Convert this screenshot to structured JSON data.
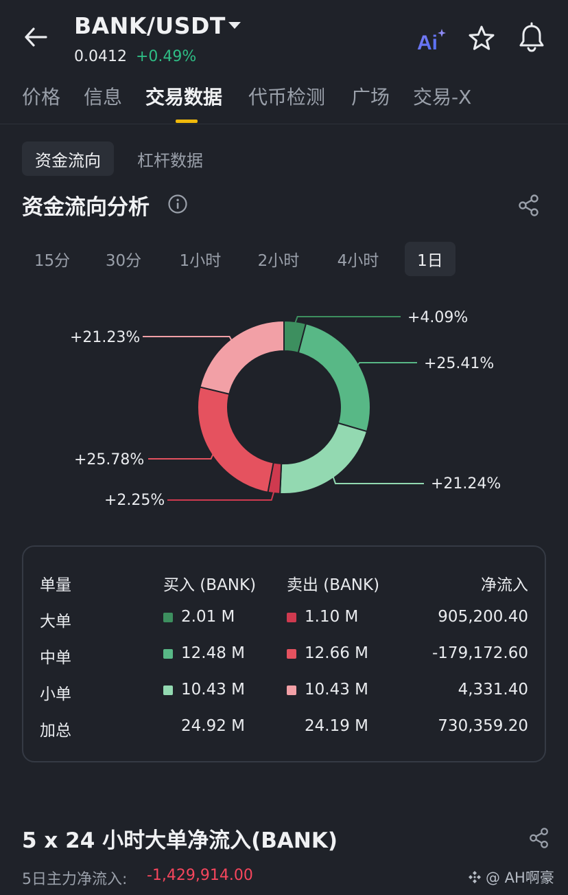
{
  "header": {
    "pair": "BANK/USDT",
    "price": "0.0412",
    "change": "+0.49%",
    "ai_label": "Ai",
    "icons": {
      "back": "back-arrow-icon",
      "caret": "caret-down-icon",
      "ai": "ai-icon",
      "favorite": "star-icon",
      "alert": "bell-icon"
    }
  },
  "tabs": [
    {
      "label": "价格"
    },
    {
      "label": "信息"
    },
    {
      "label": "交易数据",
      "active": true
    },
    {
      "label": "代币检测"
    },
    {
      "label": "广场"
    },
    {
      "label": "交易-X"
    }
  ],
  "subtabs": [
    {
      "label": "资金流向",
      "active": true
    },
    {
      "label": "杠杆数据"
    }
  ],
  "section": {
    "title": "资金流向分析"
  },
  "time_ranges": [
    {
      "label": "15分"
    },
    {
      "label": "30分"
    },
    {
      "label": "1小时"
    },
    {
      "label": "2小时"
    },
    {
      "label": "4小时"
    },
    {
      "label": "1日",
      "active": true
    }
  ],
  "chart_data": {
    "type": "pie",
    "variant": "donut",
    "slices": [
      {
        "label": "+4.09%",
        "value": 4.09,
        "color": "#3d8f5f"
      },
      {
        "label": "+25.41%",
        "value": 25.41,
        "color": "#58b886"
      },
      {
        "label": "+21.24%",
        "value": 21.24,
        "color": "#93d9b1"
      },
      {
        "label": "+2.25%",
        "value": 2.25,
        "color": "#cf3a4f"
      },
      {
        "label": "+25.78%",
        "value": 25.78,
        "color": "#e5525f"
      },
      {
        "label": "+21.23%",
        "value": 21.23,
        "color": "#f2a0a6"
      }
    ]
  },
  "table": {
    "headers": [
      "单量",
      "买入 (BANK)",
      "卖出 (BANK)",
      "净流入"
    ],
    "rows": [
      {
        "label": "大单",
        "buy": "2.01 M",
        "sell": "1.10 M",
        "net": "905,200.40",
        "buy_color": "#3d8f5f",
        "sell_color": "#cf3a4f"
      },
      {
        "label": "中单",
        "buy": "12.48 M",
        "sell": "12.66 M",
        "net": "-179,172.60",
        "buy_color": "#58b886",
        "sell_color": "#e5525f"
      },
      {
        "label": "小单",
        "buy": "10.43 M",
        "sell": "10.43 M",
        "net": "4,331.40",
        "buy_color": "#93d9b1",
        "sell_color": "#f2a0a6"
      },
      {
        "label": "加总",
        "buy": "24.92 M",
        "sell": "24.19 M",
        "net": "730,359.20"
      }
    ]
  },
  "bottom": {
    "title": "5 x 24 小时大单净流入(BANK)",
    "net_label": "5日主力净流入:",
    "net_value": "-1,429,914.00"
  },
  "watermark": {
    "text": "@ AH啊豪"
  }
}
